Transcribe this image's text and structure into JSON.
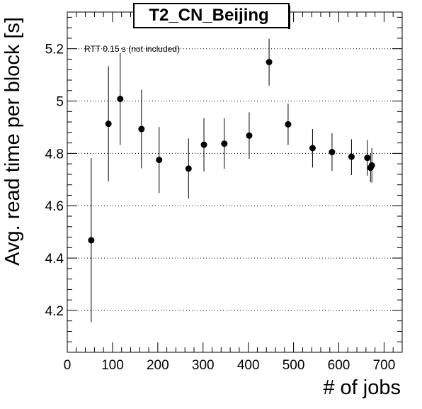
{
  "chart_data": {
    "type": "scatter",
    "title": "T2_CN_Beijing",
    "xlabel": "# of jobs",
    "ylabel": "Avg. read time per block [s]",
    "annotation": "RTT 0.15 s (not included)",
    "xlim": [
      0,
      740
    ],
    "ylim": [
      4.04,
      5.34
    ],
    "xticks": [
      0,
      100,
      200,
      300,
      400,
      500,
      600,
      700
    ],
    "xtick_labels": [
      "0",
      "100",
      "200",
      "300",
      "400",
      "500",
      "600",
      "700"
    ],
    "yticks": [
      4.2,
      4.4,
      4.6,
      4.8,
      5.0,
      5.2
    ],
    "ytick_labels": [
      "4.2",
      "4.4",
      "4.6",
      "4.8",
      "5",
      "5.2"
    ],
    "grid": "horizontal dotted at major y ticks",
    "series": [
      {
        "marker": "filled circle with vertical error bars",
        "color": "#000000",
        "points": [
          {
            "x": 53,
            "y": 4.468,
            "yerr_low": 4.155,
            "yerr_high": 4.782
          },
          {
            "x": 91,
            "y": 4.913,
            "yerr_low": 4.693,
            "yerr_high": 5.133
          },
          {
            "x": 117,
            "y": 5.008,
            "yerr_low": 4.832,
            "yerr_high": 5.183
          },
          {
            "x": 164,
            "y": 4.893,
            "yerr_low": 4.743,
            "yerr_high": 5.043
          },
          {
            "x": 203,
            "y": 4.775,
            "yerr_low": 4.648,
            "yerr_high": 4.901
          },
          {
            "x": 268,
            "y": 4.742,
            "yerr_low": 4.627,
            "yerr_high": 4.857
          },
          {
            "x": 302,
            "y": 4.833,
            "yerr_low": 4.731,
            "yerr_high": 4.935
          },
          {
            "x": 347,
            "y": 4.837,
            "yerr_low": 4.741,
            "yerr_high": 4.934
          },
          {
            "x": 402,
            "y": 4.868,
            "yerr_low": 4.779,
            "yerr_high": 4.957
          },
          {
            "x": 446,
            "y": 5.149,
            "yerr_low": 5.059,
            "yerr_high": 5.238
          },
          {
            "x": 488,
            "y": 4.911,
            "yerr_low": 4.832,
            "yerr_high": 4.99
          },
          {
            "x": 542,
            "y": 4.82,
            "yerr_low": 4.746,
            "yerr_high": 4.893
          },
          {
            "x": 585,
            "y": 4.805,
            "yerr_low": 4.733,
            "yerr_high": 4.877
          },
          {
            "x": 628,
            "y": 4.787,
            "yerr_low": 4.717,
            "yerr_high": 4.854
          },
          {
            "x": 663,
            "y": 4.783,
            "yerr_low": 4.715,
            "yerr_high": 4.851
          },
          {
            "x": 670,
            "y": 4.745,
            "yerr_low": 4.69,
            "yerr_high": 4.799
          },
          {
            "x": 673,
            "y": 4.754,
            "yerr_low": 4.688,
            "yerr_high": 4.82
          }
        ]
      }
    ]
  }
}
